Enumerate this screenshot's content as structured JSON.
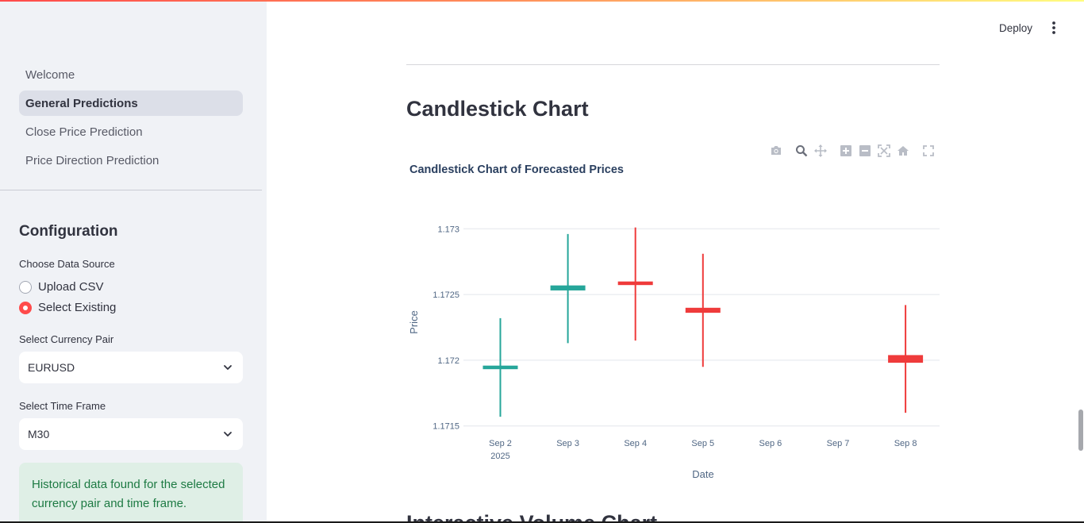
{
  "sidebar": {
    "nav": [
      {
        "label": "Welcome",
        "active": false
      },
      {
        "label": "General Predictions",
        "active": true
      },
      {
        "label": "Close Price Prediction",
        "active": false
      },
      {
        "label": "Price Direction Prediction",
        "active": false
      }
    ],
    "config_title": "Configuration",
    "data_source": {
      "label": "Choose Data Source",
      "options": [
        {
          "label": "Upload CSV",
          "checked": false
        },
        {
          "label": "Select Existing",
          "checked": true
        }
      ]
    },
    "currency_pair": {
      "label": "Select Currency Pair",
      "value": "EURUSD"
    },
    "time_frame": {
      "label": "Select Time Frame",
      "value": "M30"
    },
    "success_message": "Historical data found for the selected currency pair and time frame."
  },
  "header": {
    "deploy_label": "Deploy"
  },
  "main": {
    "section_title": "Candlestick Chart",
    "next_section_title": "Interactive Volume Chart"
  },
  "colors": {
    "increasing": "#26a69a",
    "decreasing": "#ef3b3b",
    "accent": "#ff4b4b"
  },
  "modebar_icons": [
    "camera-icon",
    "zoom-icon",
    "pan-icon",
    "zoom-in-icon",
    "zoom-out-icon",
    "autoscale-icon",
    "reset-axes-icon",
    "fullscreen-icon"
  ],
  "chart_data": {
    "type": "candlestick",
    "title": "Candlestick Chart of Forecasted Prices",
    "xlabel": "Date",
    "ylabel": "Price",
    "x_ticks": [
      "Sep 2",
      "Sep 3",
      "Sep 4",
      "Sep 5",
      "Sep 6",
      "Sep 7",
      "Sep 8"
    ],
    "x_year_label": "2025",
    "y_ticks": [
      "1.1715",
      "1.172",
      "1.1725",
      "1.173"
    ],
    "ylim": [
      1.17145,
      1.17305
    ],
    "candles": [
      {
        "date": "Sep 2",
        "open": 1.17195,
        "high": 1.17232,
        "low": 1.17157,
        "close": 1.17195,
        "direction": "up"
      },
      {
        "date": "Sep 3",
        "open": 1.17254,
        "high": 1.17296,
        "low": 1.17213,
        "close": 1.17256,
        "direction": "up"
      },
      {
        "date": "Sep 4",
        "open": 1.17259,
        "high": 1.17301,
        "low": 1.17215,
        "close": 1.17259,
        "direction": "down"
      },
      {
        "date": "Sep 5",
        "open": 1.17239,
        "high": 1.17281,
        "low": 1.17195,
        "close": 1.17237,
        "direction": "down"
      },
      {
        "date": "Sep 8",
        "open": 1.17203,
        "high": 1.17242,
        "low": 1.1716,
        "close": 1.17199,
        "direction": "down"
      }
    ]
  }
}
